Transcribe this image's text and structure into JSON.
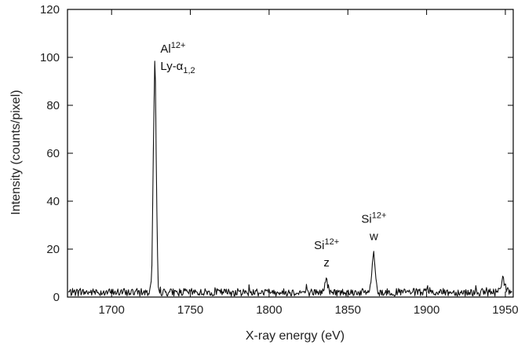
{
  "chart_data": {
    "type": "line",
    "title": "",
    "xlabel": "X-ray energy (eV)",
    "ylabel": "Intensity (counts/pixel)",
    "xlim": [
      1672,
      1955
    ],
    "ylim": [
      0,
      120
    ],
    "x_ticks": [
      1700,
      1750,
      1800,
      1850,
      1900,
      1950
    ],
    "y_ticks": [
      0,
      20,
      40,
      60,
      80,
      100,
      120
    ],
    "grid": false,
    "background_level": 2,
    "peaks": [
      {
        "x": 1727.5,
        "y": 103
      },
      {
        "x": 1836.5,
        "y": 8
      },
      {
        "x": 1866.5,
        "y": 19
      },
      {
        "x": 1948.5,
        "y": 9
      }
    ],
    "series": [
      {
        "values": [
          [
            1675,
            2
          ],
          [
            1700,
            2
          ],
          [
            1720,
            2
          ],
          [
            1724,
            2
          ],
          [
            1725.5,
            8
          ],
          [
            1726.5,
            60
          ],
          [
            1727.2,
            90
          ],
          [
            1727.5,
            103
          ],
          [
            1727.9,
            88
          ],
          [
            1728.5,
            45
          ],
          [
            1729.5,
            6
          ],
          [
            1731,
            2
          ],
          [
            1800,
            2
          ],
          [
            1834,
            2
          ],
          [
            1836.5,
            8
          ],
          [
            1838,
            2
          ],
          [
            1863,
            2
          ],
          [
            1864.5,
            5
          ],
          [
            1866,
            17
          ],
          [
            1866.5,
            19
          ],
          [
            1867.5,
            10
          ],
          [
            1869,
            2
          ],
          [
            1900,
            2
          ],
          [
            1945,
            2
          ],
          [
            1947.5,
            6
          ],
          [
            1948.5,
            9
          ],
          [
            1950,
            3
          ],
          [
            1953,
            2
          ]
        ]
      }
    ],
    "annotations": [
      {
        "id": "al",
        "x": 1731,
        "y": 102,
        "line1_base": "Al",
        "line1_sup": "12+",
        "line2_base": "Ly-α",
        "line2_sub": "1,2"
      },
      {
        "id": "siz",
        "x": 1836.5,
        "y": 20,
        "line1_base": "Si",
        "line1_sup": "12+",
        "line2_base": "z"
      },
      {
        "id": "siw",
        "x": 1866.5,
        "y": 31,
        "line1_base": "Si",
        "line1_sup": "12+",
        "line2_base": "w"
      }
    ]
  }
}
